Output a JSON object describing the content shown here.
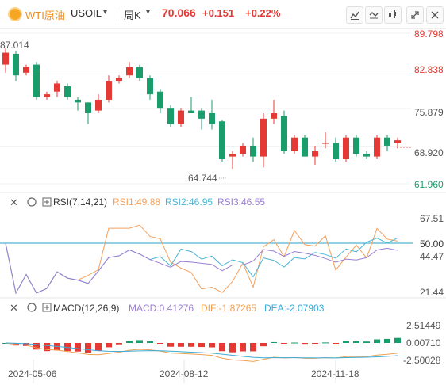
{
  "header": {
    "symbol_name": "WTI原油",
    "symbol_code": "USOIL",
    "caret": "▾",
    "period": "周K",
    "last_price": "70.066",
    "change": "+0.151",
    "change_pct": "+0.22%",
    "buttons": [
      "draw-tool-icon",
      "crosshair-icon",
      "candle-style-icon",
      "expand-icon",
      "close-icon"
    ]
  },
  "main_chart": {
    "y_ticks": [
      "89.798",
      "82.838",
      "75.879",
      "68.920",
      "61.960"
    ],
    "high_label": "87.014",
    "low_label": "64.744",
    "last_tag": "70.066"
  },
  "rsi": {
    "title": "RSI(7,14,21)",
    "rsi1": "RSI1:49.88",
    "rsi2": "RSI2:46.95",
    "rsi3": "RSI3:46.55",
    "y_ticks": [
      "67.51",
      "50.00",
      "44.47",
      "21.44"
    ]
  },
  "macd": {
    "title": "MACD(12,26,9)",
    "macd": "MACD:0.41276",
    "dif": "DIF:-1.87265",
    "dea": "DEA:-2.07903",
    "y_ticks": [
      "2.51449",
      "0.00710",
      "-2.50028"
    ]
  },
  "x_axis": {
    "labels": [
      "2024-05-06",
      "2024-08-12",
      "2024-11-18"
    ]
  },
  "colors": {
    "up": "#e53935",
    "down": "#1a9c6b",
    "rsi1": "#f5a05c",
    "rsi2": "#4bb6d4",
    "rsi3": "#9b7fd1",
    "dif": "#f0a050",
    "dea": "#3aaad6",
    "accent": "#f08c1c"
  },
  "chart_data": {
    "type": "candlestick",
    "y_range": [
      61.96,
      89.798
    ],
    "candles": [
      {
        "o": 84.0,
        "h": 87.0,
        "l": 82.5,
        "c": 86.2
      },
      {
        "o": 86.0,
        "h": 86.6,
        "l": 81.0,
        "c": 82.0
      },
      {
        "o": 82.5,
        "h": 84.0,
        "l": 82.0,
        "c": 83.6
      },
      {
        "o": 84.0,
        "h": 84.5,
        "l": 77.5,
        "c": 78.0
      },
      {
        "o": 78.0,
        "h": 79.0,
        "l": 77.5,
        "c": 78.5
      },
      {
        "o": 79.0,
        "h": 81.0,
        "l": 78.0,
        "c": 80.5
      },
      {
        "o": 80.0,
        "h": 80.5,
        "l": 77.5,
        "c": 78.0
      },
      {
        "o": 77.5,
        "h": 78.0,
        "l": 75.5,
        "c": 77.0
      },
      {
        "o": 77.0,
        "h": 77.0,
        "l": 73.0,
        "c": 75.0
      },
      {
        "o": 75.5,
        "h": 78.5,
        "l": 75.0,
        "c": 77.5
      },
      {
        "o": 77.5,
        "h": 82.0,
        "l": 77.0,
        "c": 81.0
      },
      {
        "o": 81.0,
        "h": 82.0,
        "l": 80.5,
        "c": 81.5
      },
      {
        "o": 82.0,
        "h": 84.5,
        "l": 81.5,
        "c": 83.5
      },
      {
        "o": 83.5,
        "h": 84.0,
        "l": 81.0,
        "c": 81.5
      },
      {
        "o": 81.5,
        "h": 82.0,
        "l": 77.5,
        "c": 78.5
      },
      {
        "o": 79.0,
        "h": 79.5,
        "l": 75.0,
        "c": 76.0
      },
      {
        "o": 76.0,
        "h": 76.5,
        "l": 72.5,
        "c": 73.0
      },
      {
        "o": 73.0,
        "h": 76.0,
        "l": 72.5,
        "c": 75.5
      },
      {
        "o": 75.5,
        "h": 78.0,
        "l": 75.0,
        "c": 75.0
      },
      {
        "o": 75.5,
        "h": 76.0,
        "l": 72.0,
        "c": 74.0
      },
      {
        "o": 75.0,
        "h": 77.5,
        "l": 72.0,
        "c": 73.0
      },
      {
        "o": 73.5,
        "h": 73.8,
        "l": 66.0,
        "c": 66.5
      },
      {
        "o": 67.0,
        "h": 68.0,
        "l": 64.744,
        "c": 67.5
      },
      {
        "o": 67.5,
        "h": 69.5,
        "l": 67.0,
        "c": 69.0
      },
      {
        "o": 69.0,
        "h": 70.5,
        "l": 66.0,
        "c": 67.0
      },
      {
        "o": 67.0,
        "h": 75.0,
        "l": 65.0,
        "c": 74.0
      },
      {
        "o": 74.0,
        "h": 77.5,
        "l": 73.0,
        "c": 75.0
      },
      {
        "o": 74.5,
        "h": 75.5,
        "l": 67.5,
        "c": 68.0
      },
      {
        "o": 68.0,
        "h": 71.0,
        "l": 67.5,
        "c": 70.5
      },
      {
        "o": 70.5,
        "h": 71.0,
        "l": 67.0,
        "c": 67.0
      },
      {
        "o": 67.0,
        "h": 69.0,
        "l": 65.5,
        "c": 68.0
      },
      {
        "o": 69.5,
        "h": 71.5,
        "l": 68.5,
        "c": 69.5
      },
      {
        "o": 69.5,
        "h": 70.5,
        "l": 66.0,
        "c": 66.5
      },
      {
        "o": 66.5,
        "h": 71.0,
        "l": 66.0,
        "c": 70.5
      },
      {
        "o": 70.5,
        "h": 71.0,
        "l": 67.0,
        "c": 67.5
      },
      {
        "o": 67.5,
        "h": 68.0,
        "l": 66.5,
        "c": 67.0
      },
      {
        "o": 67.0,
        "h": 71.0,
        "l": 66.5,
        "c": 70.5
      },
      {
        "o": 70.5,
        "h": 71.0,
        "l": 68.0,
        "c": 69.0
      },
      {
        "o": 69.5,
        "h": 70.5,
        "l": 68.5,
        "c": 70.0
      }
    ]
  }
}
